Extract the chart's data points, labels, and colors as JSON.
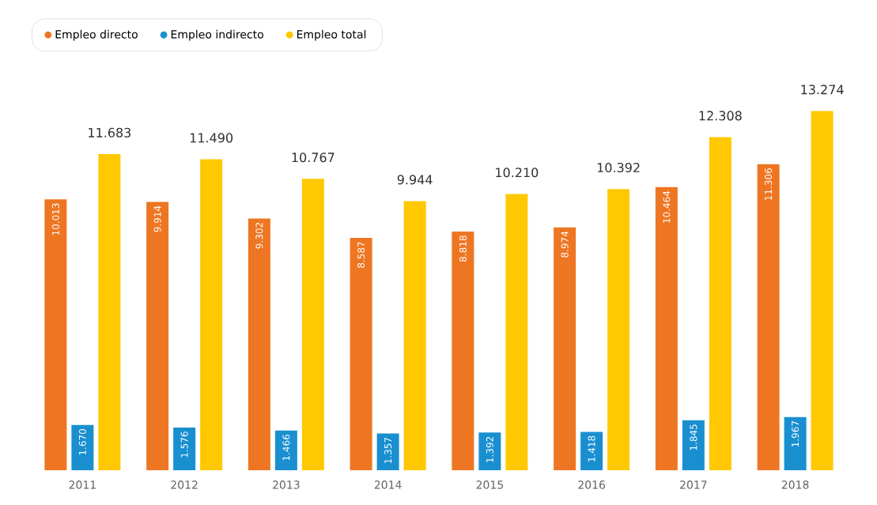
{
  "chart_data": {
    "type": "bar",
    "categories": [
      "2011",
      "2012",
      "2013",
      "2014",
      "2015",
      "2016",
      "2017",
      "2018"
    ],
    "series": [
      {
        "name": "Empleo directo",
        "color": "#ee7623",
        "values": [
          10013,
          9914,
          9302,
          8587,
          8818,
          8974,
          10464,
          11306
        ],
        "value_labels": [
          "10.013",
          "9.914",
          "9.302",
          "8.587",
          "8.818",
          "8.974",
          "10.464",
          "11.306"
        ]
      },
      {
        "name": "Empleo indirecto",
        "color": "#1a8fd0",
        "values": [
          1670,
          1576,
          1466,
          1357,
          1392,
          1418,
          1845,
          1967
        ],
        "value_labels": [
          "1.670",
          "1.576",
          "1.466",
          "1.357",
          "1.392",
          "1.418",
          "1.845",
          "1.967"
        ]
      },
      {
        "name": "Empleo total",
        "color": "#ffc800",
        "values": [
          11683,
          11490,
          10767,
          9944,
          10210,
          10392,
          12308,
          13274
        ],
        "value_labels": [
          "11.683",
          "11.490",
          "10.767",
          "9.944",
          "10.210",
          "10.392",
          "12.308",
          "13.274"
        ]
      }
    ],
    "legend": "top left"
  }
}
